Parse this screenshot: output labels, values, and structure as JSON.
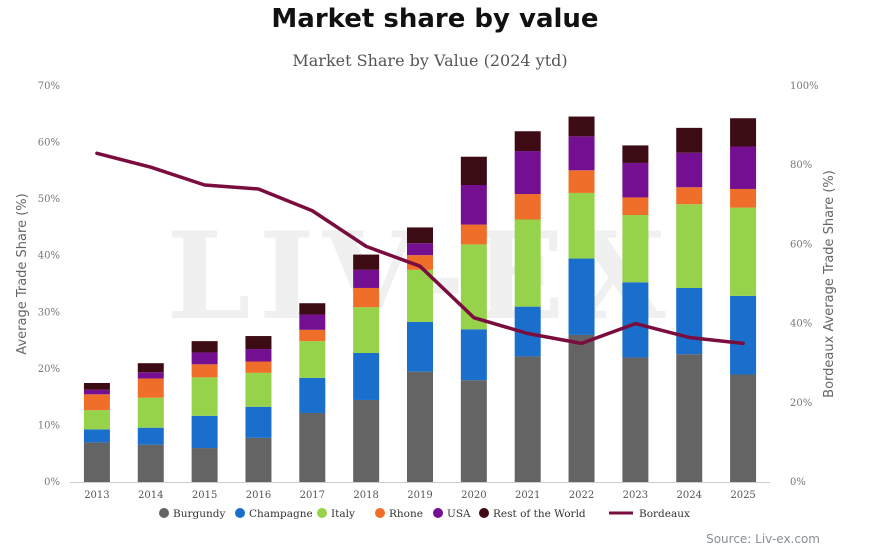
{
  "page_title": "Market share by value",
  "source": "Source: Liv-ex.com",
  "watermark": "LIV-EX",
  "colors": {
    "Burgundy": "#646464",
    "Champagne": "#1a6fcc",
    "Italy": "#96d24a",
    "Rhone": "#ee6e2a",
    "USA": "#750f91",
    "Rest of the World": "#3d0b14",
    "Bordeaux": "#7a0d3e"
  },
  "chart_data": {
    "type": "bar",
    "stacked": true,
    "title": "Market Share by Value (2024 ytd)",
    "ylabel": "Average Trade Share (%)",
    "y2label": "Bordeaux Average Trade Share (%)",
    "ylim": [
      0,
      70
    ],
    "yticks": [
      "0%",
      "10%",
      "20%",
      "30%",
      "40%",
      "50%",
      "60%",
      "70%"
    ],
    "y2lim": [
      0,
      100
    ],
    "y2ticks": [
      "0%",
      "20%",
      "40%",
      "60%",
      "80%",
      "100%"
    ],
    "categories": [
      "2013",
      "2014",
      "2015",
      "2016",
      "2017",
      "2018",
      "2019",
      "2020",
      "2021",
      "2022",
      "2023",
      "2024",
      "2025"
    ],
    "series": [
      {
        "name": "Burgundy",
        "values": [
          7,
          6.6,
          6,
          7.8,
          12.2,
          14.5,
          19.5,
          18,
          22.2,
          26,
          22,
          22.6,
          19
        ]
      },
      {
        "name": "Champagne",
        "values": [
          2.3,
          3,
          5.7,
          5.5,
          6.2,
          8.3,
          8.8,
          9,
          8.8,
          13.5,
          13.3,
          11.7,
          13.9
        ]
      },
      {
        "name": "Italy",
        "values": [
          3.4,
          5.3,
          6.8,
          6,
          6.5,
          8.1,
          9.2,
          15,
          15.4,
          11.6,
          11.9,
          14.8,
          15.6
        ]
      },
      {
        "name": "Rhone",
        "values": [
          2.8,
          3.4,
          2.3,
          2,
          2,
          3.4,
          2.6,
          3.5,
          4.5,
          4,
          3.1,
          3,
          3.3
        ]
      },
      {
        "name": "USA",
        "values": [
          0.8,
          1.1,
          2.1,
          2.2,
          2.7,
          3.2,
          2.1,
          7,
          7.6,
          6,
          6.1,
          6.1,
          7.5
        ]
      },
      {
        "name": "Rest of the World",
        "values": [
          1.2,
          1.6,
          2,
          2.3,
          2,
          2.7,
          2.8,
          5,
          3.5,
          3.5,
          3.1,
          4.4,
          5
        ]
      }
    ],
    "line": {
      "name": "Bordeaux",
      "axis": "right",
      "values": [
        83,
        79.5,
        75,
        74,
        68.5,
        59.5,
        54.5,
        41.5,
        37.5,
        35,
        40,
        36.5,
        35
      ]
    },
    "legend_position": "bottom",
    "grid": false
  }
}
